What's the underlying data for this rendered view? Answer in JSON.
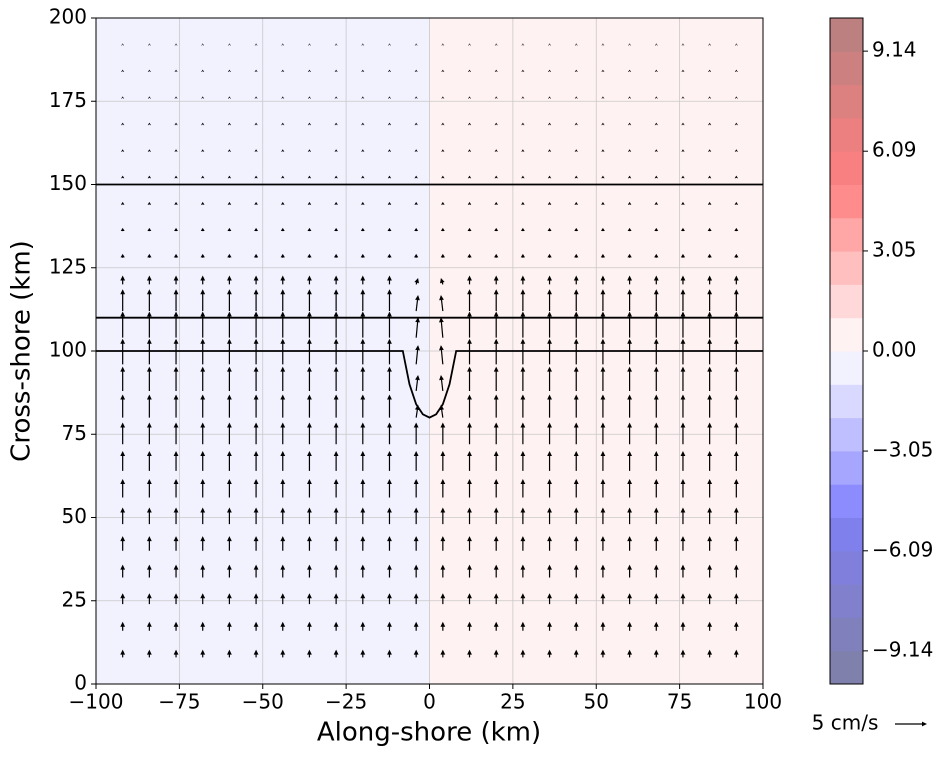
{
  "chart_data": {
    "type": "quiver",
    "xlabel": "Along-shore (km)",
    "ylabel": "Cross-shore (km)",
    "xlim": [
      -100,
      100
    ],
    "ylim": [
      0,
      200
    ],
    "xticks": [
      {
        "value": -100,
        "label": "−100"
      },
      {
        "value": -75,
        "label": "−75"
      },
      {
        "value": -50,
        "label": "−50"
      },
      {
        "value": -25,
        "label": "−25"
      },
      0,
      25,
      50,
      75,
      100
    ],
    "yticks": [
      0,
      25,
      50,
      75,
      100,
      125,
      150,
      175,
      200
    ],
    "grid": true,
    "regions": [
      {
        "x": [
          -100,
          0
        ],
        "value": -0.5
      },
      {
        "x": [
          0,
          100
        ],
        "value": 0.5
      }
    ],
    "contours": [
      {
        "x": [
          -100,
          100
        ],
        "y": [
          150,
          150
        ]
      },
      {
        "x": [
          -100,
          100
        ],
        "y": [
          110,
          110
        ]
      },
      {
        "x": [
          -100,
          -8,
          -7,
          -6,
          -5,
          -4,
          -2,
          0,
          2,
          4,
          5,
          6,
          7,
          8,
          100
        ],
        "y": [
          100,
          100,
          95,
          90,
          87,
          84,
          81,
          80,
          81,
          84,
          87,
          90,
          95,
          100,
          100
        ]
      }
    ],
    "x": [
      -92,
      -84,
      -76,
      -68,
      -60,
      -52,
      -44,
      -36,
      -28,
      -20,
      -12,
      -4,
      4,
      12,
      20,
      28,
      36,
      44,
      52,
      60,
      68,
      76,
      84,
      92
    ],
    "y": [
      8,
      16,
      24,
      32,
      40,
      48,
      56,
      64,
      72,
      80,
      88,
      96,
      104,
      112,
      120,
      128,
      136,
      144,
      152,
      160,
      168,
      176,
      184,
      192
    ],
    "u": [
      [
        0,
        0,
        0,
        0,
        0,
        0,
        0,
        0,
        0,
        0,
        0,
        0,
        0,
        0,
        0,
        0,
        0,
        0,
        0,
        0,
        0,
        0,
        0,
        0
      ],
      [
        0,
        0,
        0,
        0,
        0,
        0,
        0,
        0,
        0,
        0,
        0,
        0,
        0,
        0,
        0,
        0,
        0,
        0,
        0,
        0,
        0,
        0,
        0,
        0
      ],
      [
        0,
        0,
        0,
        0,
        0,
        0,
        0,
        0,
        0,
        0,
        0,
        0,
        0,
        0,
        0,
        0,
        0,
        0,
        0,
        0,
        0,
        0,
        0,
        0
      ],
      [
        0,
        0,
        0,
        0,
        0,
        0,
        0,
        0,
        0,
        0,
        0,
        0,
        0,
        0,
        0,
        0,
        0,
        0,
        0,
        0,
        0,
        0,
        0,
        0
      ],
      [
        0,
        0,
        0,
        0,
        0,
        0,
        0,
        0,
        0,
        0,
        0,
        0,
        0,
        0,
        0,
        0,
        0,
        0,
        0,
        0,
        0,
        0,
        0,
        0
      ],
      [
        0,
        0,
        0,
        0,
        0,
        0,
        0,
        0,
        0,
        0,
        0,
        0,
        0,
        0,
        0,
        0,
        0,
        0,
        0,
        0,
        0,
        0,
        0,
        0
      ],
      [
        0,
        0,
        0,
        0,
        0,
        0,
        0,
        0,
        0,
        0,
        0,
        0,
        0,
        0,
        0,
        0,
        0,
        0,
        0,
        0,
        0,
        0,
        0,
        0
      ],
      [
        0,
        0,
        0,
        0,
        0,
        0,
        0,
        0,
        0,
        0,
        0,
        0,
        0,
        0,
        0,
        0,
        0,
        0,
        0,
        0,
        0,
        0,
        0,
        0
      ],
      [
        0,
        0,
        0,
        0,
        0,
        0,
        0,
        0,
        0,
        0,
        0,
        0,
        0,
        0,
        0,
        0,
        0,
        0,
        0,
        0,
        0,
        0,
        0,
        0
      ],
      [
        0,
        0,
        0,
        0,
        0,
        0,
        0,
        0,
        0,
        0,
        0,
        0.3,
        -0.3,
        0,
        0,
        0,
        0,
        0,
        0,
        0,
        0,
        0,
        0,
        0
      ],
      [
        0,
        0,
        0,
        0,
        0,
        0,
        0,
        0,
        0,
        0,
        0,
        0.3,
        -0.3,
        0,
        0,
        0,
        0,
        0,
        0,
        0,
        0,
        0,
        0,
        0
      ],
      [
        0,
        0,
        0,
        0,
        0,
        0,
        0,
        0,
        0,
        0,
        0,
        0.3,
        -0.3,
        0,
        0,
        0,
        0,
        0,
        0,
        0,
        0,
        0,
        0,
        0
      ],
      [
        0,
        0,
        0,
        0,
        0,
        0,
        0,
        0,
        0,
        0,
        0,
        0.3,
        -0.3,
        0,
        0,
        0,
        0,
        0,
        0,
        0,
        0,
        0,
        0,
        0
      ],
      [
        0,
        0,
        0,
        0,
        0,
        0,
        0,
        0,
        0,
        0,
        0,
        0.3,
        -0.3,
        0,
        0,
        0,
        0,
        0,
        0,
        0,
        0,
        0,
        0,
        0
      ],
      [
        0,
        0,
        0,
        0,
        0,
        0,
        0,
        0,
        0,
        0,
        0,
        0.3,
        -0.3,
        0,
        0,
        0,
        0,
        0,
        0,
        0,
        0,
        0,
        0,
        0
      ],
      [
        0,
        0,
        0,
        0,
        0,
        0,
        0,
        0,
        0,
        0,
        0,
        0,
        0,
        0,
        0,
        0,
        0,
        0,
        0,
        0,
        0,
        0,
        0,
        0
      ],
      [
        0,
        0,
        0,
        0,
        0,
        0,
        0,
        0,
        0,
        0,
        0,
        0,
        0,
        0,
        0,
        0,
        0,
        0,
        0,
        0,
        0,
        0,
        0,
        0
      ],
      [
        0,
        0,
        0,
        0,
        0,
        0,
        0,
        0,
        0,
        0,
        0,
        0,
        0,
        0,
        0,
        0,
        0,
        0,
        0,
        0,
        0,
        0,
        0,
        0
      ],
      [
        0,
        0,
        0,
        0,
        0,
        0,
        0,
        0,
        0,
        0,
        0,
        0,
        0,
        0,
        0,
        0,
        0,
        0,
        0,
        0,
        0,
        0,
        0,
        0
      ],
      [
        0,
        0,
        0,
        0,
        0,
        0,
        0,
        0,
        0,
        0,
        0,
        0,
        0,
        0,
        0,
        0,
        0,
        0,
        0,
        0,
        0,
        0,
        0,
        0
      ],
      [
        0,
        0,
        0,
        0,
        0,
        0,
        0,
        0,
        0,
        0,
        0,
        0,
        0,
        0,
        0,
        0,
        0,
        0,
        0,
        0,
        0,
        0,
        0,
        0
      ],
      [
        0,
        0,
        0,
        0,
        0,
        0,
        0,
        0,
        0,
        0,
        0,
        0,
        0,
        0,
        0,
        0,
        0,
        0,
        0,
        0,
        0,
        0,
        0,
        0
      ],
      [
        0,
        0,
        0,
        0,
        0,
        0,
        0,
        0,
        0,
        0,
        0,
        0,
        0,
        0,
        0,
        0,
        0,
        0,
        0,
        0,
        0,
        0,
        0,
        0
      ],
      [
        0,
        0,
        0,
        0,
        0,
        0,
        0,
        0,
        0,
        0,
        0,
        0,
        0,
        0,
        0,
        0,
        0,
        0,
        0,
        0,
        0,
        0,
        0,
        0
      ]
    ],
    "v": [
      [
        1.2,
        1.2,
        1.2,
        1.2,
        1.2,
        1.2,
        1.2,
        1.2,
        1.2,
        1.2,
        1.2,
        1.2,
        1.2,
        1.2,
        1.2,
        1.2,
        1.2,
        1.2,
        1.2,
        1.2,
        1.2,
        1.2,
        1.2,
        1.2
      ],
      [
        1.4,
        1.4,
        1.4,
        1.4,
        1.4,
        1.4,
        1.4,
        1.4,
        1.4,
        1.4,
        1.4,
        1.4,
        1.4,
        1.4,
        1.4,
        1.4,
        1.4,
        1.4,
        1.4,
        1.4,
        1.4,
        1.4,
        1.4,
        1.4
      ],
      [
        1.7,
        1.7,
        1.7,
        1.7,
        1.7,
        1.7,
        1.7,
        1.7,
        1.7,
        1.7,
        1.7,
        1.7,
        1.7,
        1.7,
        1.7,
        1.7,
        1.7,
        1.7,
        1.7,
        1.7,
        1.7,
        1.7,
        1.7,
        1.7
      ],
      [
        2.0,
        2.0,
        2.0,
        2.0,
        2.0,
        2.0,
        2.0,
        2.0,
        2.0,
        2.0,
        2.0,
        2.0,
        2.0,
        2.0,
        2.0,
        2.0,
        2.0,
        2.0,
        2.0,
        2.0,
        2.0,
        2.0,
        2.0,
        2.0
      ],
      [
        2.3,
        2.3,
        2.3,
        2.3,
        2.3,
        2.3,
        2.3,
        2.3,
        2.3,
        2.3,
        2.3,
        2.3,
        2.3,
        2.3,
        2.3,
        2.3,
        2.3,
        2.3,
        2.3,
        2.3,
        2.3,
        2.3,
        2.3,
        2.3
      ],
      [
        2.6,
        2.6,
        2.6,
        2.6,
        2.6,
        2.6,
        2.6,
        2.6,
        2.6,
        2.6,
        2.6,
        2.6,
        2.6,
        2.6,
        2.6,
        2.6,
        2.6,
        2.6,
        2.6,
        2.6,
        2.6,
        2.6,
        2.6,
        2.6
      ],
      [
        2.9,
        2.9,
        2.9,
        2.9,
        2.9,
        2.9,
        2.9,
        2.9,
        2.9,
        2.9,
        2.9,
        2.9,
        2.9,
        2.9,
        2.9,
        2.9,
        2.9,
        2.9,
        2.9,
        2.9,
        2.9,
        2.9,
        2.9,
        2.9
      ],
      [
        3.1,
        3.1,
        3.1,
        3.1,
        3.1,
        3.1,
        3.1,
        3.1,
        3.1,
        3.1,
        3.1,
        3.1,
        3.1,
        3.1,
        3.1,
        3.1,
        3.1,
        3.1,
        3.1,
        3.1,
        3.1,
        3.1,
        3.1,
        3.1
      ],
      [
        3.4,
        3.4,
        3.4,
        3.4,
        3.4,
        3.4,
        3.4,
        3.4,
        3.4,
        3.4,
        3.4,
        3.4,
        3.4,
        3.4,
        3.4,
        3.4,
        3.4,
        3.4,
        3.4,
        3.4,
        3.4,
        3.4,
        3.4,
        3.4
      ],
      [
        3.6,
        3.6,
        3.6,
        3.6,
        3.6,
        3.6,
        3.6,
        3.6,
        3.6,
        3.6,
        3.6,
        2.0,
        2.0,
        3.6,
        3.6,
        3.6,
        3.6,
        3.6,
        3.6,
        3.6,
        3.6,
        3.6,
        3.6,
        3.6
      ],
      [
        3.8,
        3.8,
        3.8,
        3.8,
        3.8,
        3.8,
        3.8,
        3.8,
        3.8,
        3.8,
        3.8,
        2.5,
        2.5,
        3.8,
        3.8,
        3.8,
        3.8,
        3.8,
        3.8,
        3.8,
        3.8,
        3.8,
        3.8,
        3.8
      ],
      [
        4.0,
        4.0,
        4.0,
        4.0,
        4.0,
        4.0,
        4.0,
        4.0,
        4.0,
        4.0,
        4.0,
        3.0,
        3.0,
        4.0,
        4.0,
        4.0,
        4.0,
        4.0,
        4.0,
        4.0,
        4.0,
        4.0,
        4.0,
        4.0
      ],
      [
        4.1,
        4.1,
        4.1,
        4.1,
        4.1,
        4.1,
        4.1,
        4.1,
        4.1,
        4.1,
        4.1,
        3.2,
        3.2,
        4.1,
        4.1,
        4.1,
        4.1,
        4.1,
        4.1,
        4.1,
        4.1,
        4.1,
        4.1,
        4.1
      ],
      [
        3.4,
        3.4,
        3.4,
        3.4,
        3.4,
        3.4,
        3.4,
        3.4,
        3.4,
        3.4,
        3.4,
        2.5,
        2.5,
        3.4,
        3.4,
        3.4,
        3.4,
        3.4,
        3.4,
        3.4,
        3.4,
        3.4,
        3.4,
        3.4
      ],
      [
        1.4,
        1.4,
        1.4,
        1.4,
        1.4,
        1.4,
        1.4,
        1.4,
        1.4,
        1.4,
        1.4,
        1.0,
        1.0,
        1.4,
        1.4,
        1.4,
        1.4,
        1.4,
        1.4,
        1.4,
        1.4,
        1.4,
        1.4,
        1.4
      ],
      [
        0.6,
        0.6,
        0.6,
        0.6,
        0.6,
        0.6,
        0.6,
        0.6,
        0.6,
        0.6,
        0.6,
        0.6,
        0.6,
        0.6,
        0.6,
        0.6,
        0.6,
        0.6,
        0.6,
        0.6,
        0.6,
        0.6,
        0.6,
        0.6
      ],
      [
        0.5,
        0.5,
        0.5,
        0.5,
        0.5,
        0.5,
        0.5,
        0.5,
        0.5,
        0.5,
        0.5,
        0.5,
        0.5,
        0.5,
        0.5,
        0.5,
        0.5,
        0.5,
        0.5,
        0.5,
        0.5,
        0.5,
        0.5,
        0.5
      ],
      [
        0.4,
        0.4,
        0.4,
        0.4,
        0.4,
        0.4,
        0.4,
        0.4,
        0.4,
        0.4,
        0.4,
        0.4,
        0.4,
        0.4,
        0.4,
        0.4,
        0.4,
        0.4,
        0.4,
        0.4,
        0.4,
        0.4,
        0.4,
        0.4
      ],
      [
        0.35,
        0.35,
        0.35,
        0.35,
        0.35,
        0.35,
        0.35,
        0.35,
        0.35,
        0.35,
        0.35,
        0.35,
        0.35,
        0.35,
        0.35,
        0.35,
        0.35,
        0.35,
        0.35,
        0.35,
        0.35,
        0.35,
        0.35,
        0.35
      ],
      [
        0.3,
        0.3,
        0.3,
        0.3,
        0.3,
        0.3,
        0.3,
        0.3,
        0.3,
        0.3,
        0.3,
        0.3,
        0.3,
        0.3,
        0.3,
        0.3,
        0.3,
        0.3,
        0.3,
        0.3,
        0.3,
        0.3,
        0.3,
        0.3
      ],
      [
        0.3,
        0.3,
        0.3,
        0.3,
        0.3,
        0.3,
        0.3,
        0.3,
        0.3,
        0.3,
        0.3,
        0.3,
        0.3,
        0.3,
        0.3,
        0.3,
        0.3,
        0.3,
        0.3,
        0.3,
        0.3,
        0.3,
        0.3,
        0.3
      ],
      [
        0.25,
        0.25,
        0.25,
        0.25,
        0.25,
        0.25,
        0.25,
        0.25,
        0.25,
        0.25,
        0.25,
        0.25,
        0.25,
        0.25,
        0.25,
        0.25,
        0.25,
        0.25,
        0.25,
        0.25,
        0.25,
        0.25,
        0.25,
        0.25
      ],
      [
        0.25,
        0.25,
        0.25,
        0.25,
        0.25,
        0.25,
        0.25,
        0.25,
        0.25,
        0.25,
        0.25,
        0.25,
        0.25,
        0.25,
        0.25,
        0.25,
        0.25,
        0.25,
        0.25,
        0.25,
        0.25,
        0.25,
        0.25,
        0.25
      ],
      [
        0.2,
        0.2,
        0.2,
        0.2,
        0.2,
        0.2,
        0.2,
        0.2,
        0.2,
        0.2,
        0.2,
        0.2,
        0.2,
        0.2,
        0.2,
        0.2,
        0.2,
        0.2,
        0.2,
        0.2,
        0.2,
        0.2,
        0.2,
        0.2
      ]
    ],
    "quiver_key": {
      "value": 5,
      "label": "5 cm/s"
    },
    "colorbar": {
      "lim": [
        -10.15,
        10.15
      ],
      "levels": [
        -10.15,
        -9.135,
        -8.12,
        -7.105,
        -6.09,
        -5.075,
        -4.06,
        -3.045,
        -2.03,
        -1.015,
        0,
        1.015,
        2.03,
        3.045,
        4.06,
        5.075,
        6.09,
        7.105,
        8.12,
        9.135,
        10.15
      ],
      "colors": [
        "#8080ac",
        "#8080bc",
        "#8080cc",
        "#8080dc",
        "#8080ec",
        "#8c8cff",
        "#a6a6ff",
        "#bfbfff",
        "#d9d9ff",
        "#f2f2ff",
        "#fff2f2",
        "#ffd9d9",
        "#ffbfbf",
        "#ffa6a6",
        "#ff8c8c",
        "#f98080",
        "#ec8080",
        "#dc8080",
        "#cc8080",
        "#bc8080"
      ],
      "ticks": [
        {
          "value": -9.14,
          "label": "−9.14"
        },
        {
          "value": -6.09,
          "label": "−6.09"
        },
        {
          "value": -3.05,
          "label": "−3.05"
        },
        {
          "value": 0,
          "label": "0.00"
        },
        3.05,
        6.09,
        9.14
      ]
    }
  }
}
